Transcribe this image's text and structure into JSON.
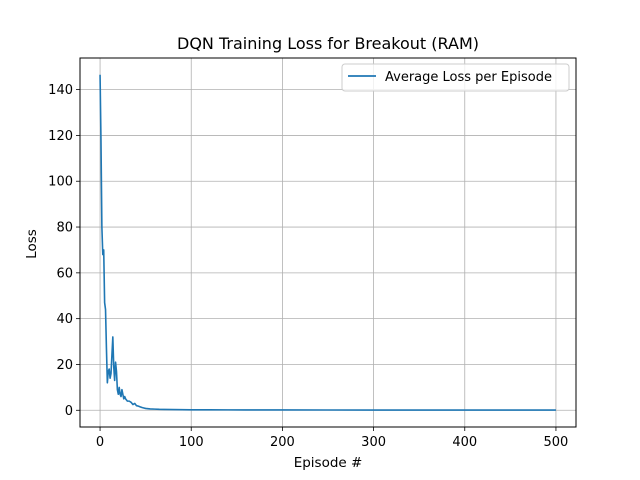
{
  "chart_data": {
    "type": "line",
    "title": "DQN Training Loss for Breakout (RAM)",
    "xlabel": "Episode #",
    "ylabel": "Loss",
    "xlim": [
      -22,
      522
    ],
    "ylim": [
      -7.3,
      153.8
    ],
    "xticks": [
      0,
      100,
      200,
      300,
      400,
      500
    ],
    "yticks": [
      0,
      20,
      40,
      60,
      80,
      100,
      120,
      140
    ],
    "grid": true,
    "legend_position": "top-right",
    "colors": {
      "series": "#1f77b4",
      "grid": "#b0b0b0",
      "frame": "#000000"
    },
    "series": [
      {
        "name": "Average Loss per Episode",
        "x": [
          0,
          1,
          2,
          3,
          4,
          5,
          6,
          7,
          8,
          9,
          10,
          11,
          12,
          13,
          14,
          15,
          16,
          17,
          18,
          19,
          20,
          21,
          22,
          23,
          24,
          25,
          26,
          27,
          28,
          29,
          30,
          32,
          34,
          36,
          38,
          40,
          42,
          44,
          46,
          48,
          50,
          55,
          60,
          65,
          70,
          80,
          90,
          100,
          120,
          140,
          160,
          180,
          200,
          250,
          300,
          350,
          400,
          450,
          500
        ],
        "y": [
          146.5,
          118,
          80,
          68,
          70,
          47,
          44,
          27,
          12,
          17,
          18,
          14,
          16,
          24,
          32,
          19,
          13,
          21,
          17,
          9,
          7,
          10,
          7,
          6,
          9,
          7,
          5,
          6,
          5,
          4.5,
          4,
          4,
          3.5,
          2.5,
          3,
          2,
          1.8,
          1.5,
          1.2,
          1,
          0.8,
          0.6,
          0.5,
          0.4,
          0.35,
          0.3,
          0.25,
          0.2,
          0.2,
          0.18,
          0.16,
          0.15,
          0.14,
          0.12,
          0.1,
          0.1,
          0.09,
          0.08,
          0.08
        ]
      }
    ]
  }
}
